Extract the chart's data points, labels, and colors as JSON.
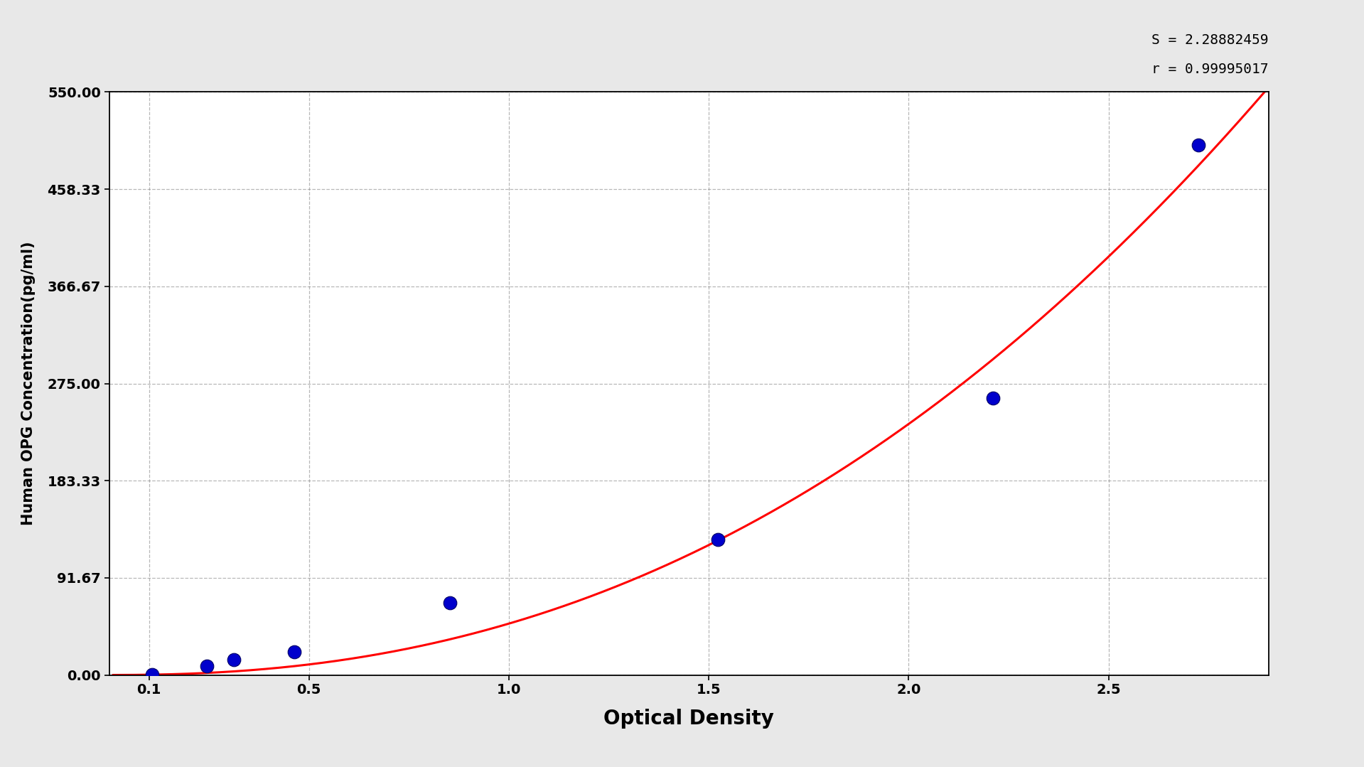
{
  "scatter_x": [
    0.108,
    0.245,
    0.312,
    0.463,
    0.853,
    1.522,
    2.21,
    2.724
  ],
  "scatter_y": [
    0.5,
    8.5,
    14.5,
    22.0,
    68.0,
    128.0,
    261.0,
    500.0
  ],
  "xlabel": "Optical Density",
  "ylabel": "Human OPG Concentration(pg/ml)",
  "xlim": [
    0.0,
    2.9
  ],
  "ylim": [
    0.0,
    550.0
  ],
  "xticks": [
    0.1,
    0.5,
    1.0,
    1.5,
    2.0,
    2.5
  ],
  "yticks": [
    0.0,
    91.67,
    183.33,
    275.0,
    366.67,
    458.33,
    550.0
  ],
  "ytick_labels": [
    "0.00",
    "91.67",
    "183.33",
    "275.00",
    "366.67",
    "458.33",
    "550.00"
  ],
  "xtick_labels": [
    "0.1",
    "0.5",
    "1.0",
    "1.5",
    "2.0",
    "2.5"
  ],
  "S_value": "S = 2.28882459",
  "r_value": "r = 0.99995017",
  "background_color": "#e8e8e8",
  "plot_bg_color": "#ffffff",
  "scatter_color": "#0000cc",
  "line_color": "#ff0000",
  "grid_color": "#888888",
  "xlabel_fontsize": 20,
  "ylabel_fontsize": 15,
  "tick_fontsize": 14,
  "annotation_fontsize": 14
}
